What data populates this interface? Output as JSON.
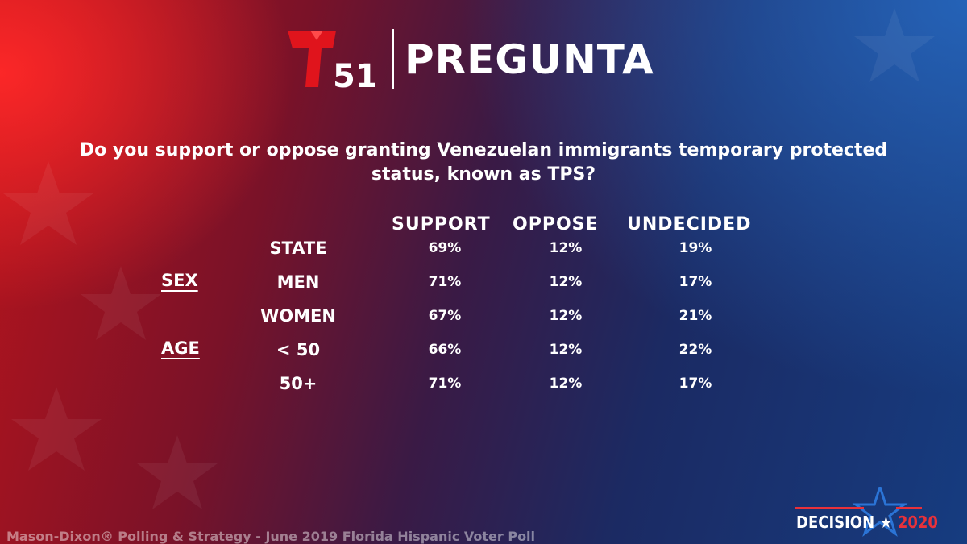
{
  "header": {
    "logo_number": "51",
    "title": "PREGUNTA"
  },
  "question": "Do you support or oppose granting Venezuelan immigrants temporary protected status, known as TPS?",
  "columns": [
    "SUPPORT",
    "OPPOSE",
    "UNDECIDED"
  ],
  "groups": {
    "sex": "SEX",
    "age": "AGE"
  },
  "rows": [
    {
      "label": "STATE",
      "support": "69%",
      "oppose": "12%",
      "undecided": "19%"
    },
    {
      "label": "MEN",
      "support": "71%",
      "oppose": "12%",
      "undecided": "17%"
    },
    {
      "label": "WOMEN",
      "support": "67%",
      "oppose": "12%",
      "undecided": "21%"
    },
    {
      "label": "< 50",
      "support": "66%",
      "oppose": "12%",
      "undecided": "22%"
    },
    {
      "label": "50+",
      "support": "71%",
      "oppose": "12%",
      "undecided": "17%"
    }
  ],
  "footer": "Mason-Dixon® Polling & Strategy - June 2019 Florida Hispanic Voter Poll",
  "badge": {
    "word": "DECISION",
    "star": "★",
    "year": "2020"
  },
  "colors": {
    "brand_red": "#e0141c",
    "badge_blue": "#2b74d6",
    "badge_red": "#e8313a"
  }
}
